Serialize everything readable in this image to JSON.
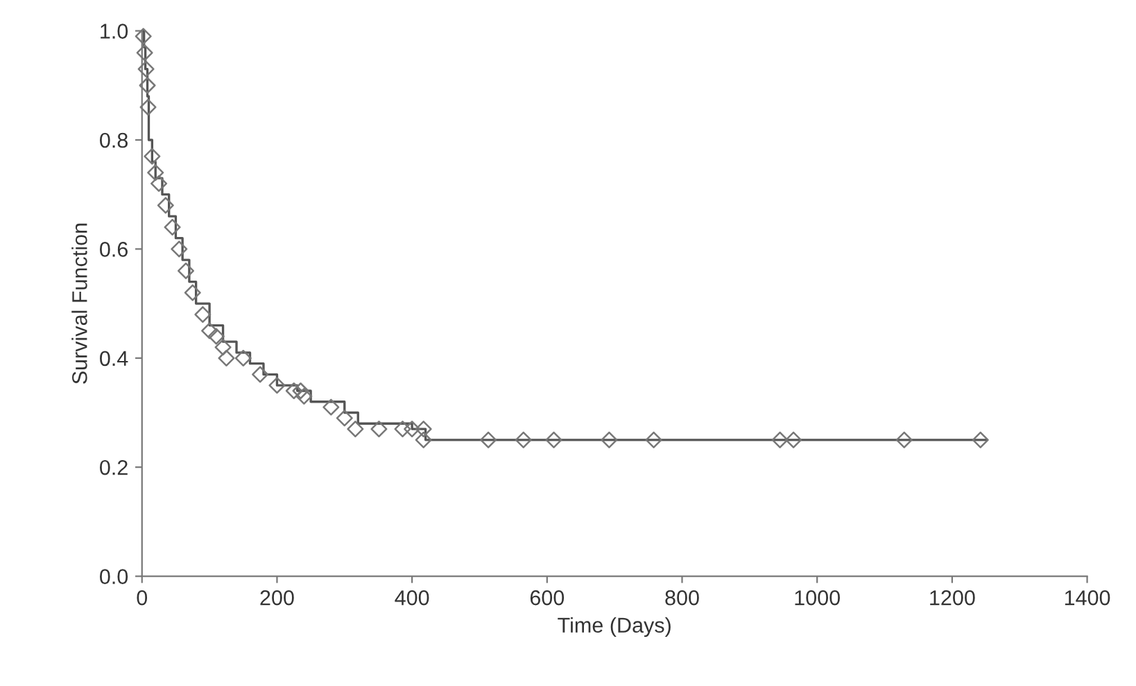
{
  "chart_data": {
    "type": "step",
    "xlabel": "Time (Days)",
    "ylabel": "Survival Function",
    "xlim": [
      0,
      1400
    ],
    "xticks": [
      0,
      200,
      400,
      600,
      800,
      1000,
      1200,
      1400
    ],
    "ylim": [
      0,
      1.0
    ],
    "yticks": [
      {
        "value": 0,
        "label": "0.0"
      },
      {
        "value": 0.2,
        "label": "0.2"
      },
      {
        "value": 0.4,
        "label": "0.4"
      },
      {
        "value": 0.6,
        "label": "0.6"
      },
      {
        "value": 0.8,
        "label": "0.8"
      },
      {
        "value": 1.0,
        "label": "1.0"
      }
    ],
    "grid": false,
    "legend": false,
    "series": [
      {
        "color": "#555555",
        "marker": "none",
        "line_style": "solid",
        "x": [
          0,
          3,
          5,
          8,
          10,
          15,
          20,
          30,
          40,
          50,
          60,
          70,
          80,
          100,
          120,
          140,
          160,
          180,
          200,
          230,
          250,
          280,
          300,
          320,
          360,
          400,
          420,
          1250
        ],
        "values": [
          1.0,
          0.97,
          0.93,
          0.88,
          0.8,
          0.76,
          0.73,
          0.7,
          0.66,
          0.62,
          0.58,
          0.54,
          0.5,
          0.46,
          0.43,
          0.41,
          0.39,
          0.37,
          0.35,
          0.34,
          0.32,
          0.32,
          0.3,
          0.28,
          0.28,
          0.27,
          0.25,
          0.25
        ]
      },
      {
        "type": "scatter",
        "color": "#777777",
        "marker": "diamond",
        "x": [
          2,
          4,
          6,
          8,
          9,
          15,
          20,
          25,
          35,
          45,
          55,
          65,
          75,
          90,
          100,
          110,
          120,
          125,
          150,
          175,
          200,
          225,
          235,
          240,
          280,
          300,
          316,
          351,
          386,
          400,
          417,
          417,
          513,
          565,
          610,
          692,
          758,
          945,
          965,
          1129,
          1242
        ],
        "values": [
          0.99,
          0.96,
          0.93,
          0.9,
          0.86,
          0.77,
          0.74,
          0.72,
          0.68,
          0.64,
          0.6,
          0.56,
          0.52,
          0.48,
          0.45,
          0.44,
          0.42,
          0.4,
          0.4,
          0.37,
          0.35,
          0.34,
          0.34,
          0.33,
          0.31,
          0.29,
          0.27,
          0.27,
          0.27,
          0.27,
          0.27,
          0.25,
          0.25,
          0.25,
          0.25,
          0.25,
          0.25,
          0.25,
          0.25,
          0.25,
          0.25
        ]
      }
    ]
  }
}
